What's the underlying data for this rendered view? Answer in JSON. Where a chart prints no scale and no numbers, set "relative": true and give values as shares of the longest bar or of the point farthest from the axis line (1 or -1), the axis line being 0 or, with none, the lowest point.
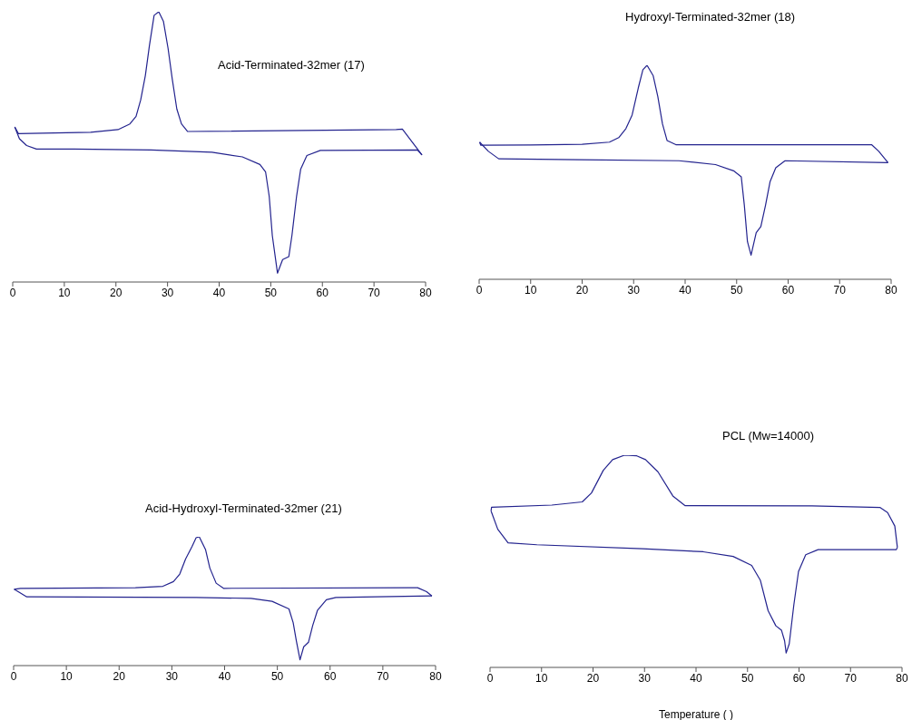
{
  "chart_data": [
    {
      "type": "line",
      "title": "Acid-Terminated-32mer (17)",
      "relative": true,
      "xlim": [
        0,
        80
      ],
      "xticks": [
        0,
        10,
        20,
        30,
        40,
        50,
        60,
        70,
        80
      ],
      "marker": "none",
      "series": [
        {
          "color": "#23238e",
          "x": [
            79.3,
            75.5,
            74.3,
            33.9,
            32.7,
            31.8,
            30.9,
            30.1,
            29.2,
            28.3,
            27.4,
            26.5,
            25.7,
            24.8,
            23.9,
            22.7,
            20.4,
            15.1,
            1.1,
            0.4
          ],
          "values": [
            0.47,
            0.566,
            0.564,
            0.557,
            0.585,
            0.64,
            0.753,
            0.865,
            0.965,
            1.0,
            0.987,
            0.876,
            0.764,
            0.674,
            0.613,
            0.585,
            0.564,
            0.554,
            0.549,
            0.574
          ]
        },
        {
          "color": "#23238e",
          "x": [
            0.4,
            1.3,
            2.7,
            4.6,
            11.9,
            26.8,
            38.6,
            44.5,
            47.9,
            49,
            49.7,
            50.3,
            51.3,
            52.3,
            53.5,
            54.1,
            55,
            55.8,
            57,
            59.6,
            78.4,
            79.3
          ],
          "values": [
            0.574,
            0.53,
            0.505,
            0.492,
            0.492,
            0.489,
            0.48,
            0.463,
            0.435,
            0.407,
            0.317,
            0.172,
            0.033,
            0.083,
            0.094,
            0.172,
            0.317,
            0.418,
            0.468,
            0.487,
            0.489,
            0.47
          ]
        }
      ]
    },
    {
      "type": "line",
      "title": "Hydroxyl-Terminated-32mer (18)",
      "relative": true,
      "xlim": [
        0,
        80
      ],
      "xticks": [
        0,
        10,
        20,
        30,
        40,
        50,
        60,
        70,
        80
      ],
      "marker": "none",
      "series": [
        {
          "color": "#23238e",
          "x": [
            79.4,
            77.6,
            76.2,
            38.2,
            36.5,
            35.6,
            34.7,
            33.8,
            32.6,
            31.8,
            30.9,
            29.7,
            28.5,
            27.1,
            25.3,
            20,
            10,
            0.3,
            0.1
          ],
          "values": [
            0.545,
            0.598,
            0.629,
            0.629,
            0.648,
            0.726,
            0.853,
            0.951,
            1.0,
            0.979,
            0.894,
            0.767,
            0.704,
            0.662,
            0.641,
            0.631,
            0.628,
            0.627,
            0.641
          ]
        },
        {
          "color": "#23238e",
          "x": [
            0.1,
            1.8,
            3.8,
            19.4,
            38.8,
            45.9,
            49.4,
            50.9,
            51.5,
            52.1,
            52.8,
            53.8,
            54.7,
            55.6,
            56.5,
            57.6,
            59.4,
            79.4
          ],
          "values": [
            0.641,
            0.598,
            0.563,
            0.559,
            0.554,
            0.536,
            0.507,
            0.479,
            0.345,
            0.176,
            0.113,
            0.218,
            0.246,
            0.345,
            0.457,
            0.521,
            0.554,
            0.545
          ]
        }
      ]
    },
    {
      "type": "line",
      "title": "Acid-Hydroxyl-Terminated-32mer (21)",
      "relative": true,
      "xlim": [
        0,
        80
      ],
      "xticks": [
        0,
        10,
        20,
        30,
        40,
        50,
        60,
        70,
        80
      ],
      "marker": "none",
      "series": [
        {
          "color": "#23238e",
          "x": [
            79.3,
            78.3,
            76.6,
            74.8,
            39.8,
            38.4,
            37.2,
            36.4,
            35.2,
            34.6,
            33.8,
            32.6,
            31.5,
            30.3,
            28.3,
            23.1,
            1.3,
            0.1
          ],
          "values": [
            0.541,
            0.574,
            0.605,
            0.605,
            0.6,
            0.64,
            0.758,
            0.899,
            1.0,
            0.993,
            0.922,
            0.828,
            0.711,
            0.652,
            0.616,
            0.605,
            0.6,
            0.593
          ]
        },
        {
          "color": "#23238e",
          "x": [
            0.1,
            2.5,
            34.6,
            45,
            49,
            52.2,
            53,
            53.6,
            54.3,
            55,
            55.9,
            56.7,
            57.6,
            59.3,
            61.1,
            79.3
          ],
          "values": [
            0.593,
            0.534,
            0.529,
            0.522,
            0.499,
            0.44,
            0.334,
            0.193,
            0.045,
            0.146,
            0.181,
            0.311,
            0.428,
            0.511,
            0.529,
            0.541
          ]
        }
      ]
    },
    {
      "type": "line",
      "title": "PCL (Mw=14000)",
      "xlabel": "Temperature (   )",
      "relative": true,
      "xlim": [
        0,
        80
      ],
      "xticks": [
        0,
        10,
        20,
        30,
        40,
        50,
        60,
        70,
        80
      ],
      "marker": "none",
      "series": [
        {
          "color": "#23238e",
          "x": [
            79.1,
            78.6,
            77.2,
            75.7,
            62.5,
            37.9,
            35.5,
            32.6,
            30.2,
            28.5,
            26.1,
            23.8,
            22,
            19.7,
            17.9,
            12,
            0.3,
            0.2
          ],
          "values": [
            0.566,
            0.666,
            0.73,
            0.754,
            0.761,
            0.762,
            0.808,
            0.922,
            0.979,
            0.997,
            1.0,
            0.979,
            0.929,
            0.822,
            0.78,
            0.765,
            0.755,
            0.737
          ]
        },
        {
          "color": "#23238e",
          "x": [
            0.2,
            1.5,
            3.5,
            9.1,
            29.6,
            41.4,
            47.2,
            50.8,
            52.5,
            54,
            55.5,
            56.6,
            57.2,
            57.5,
            58.1,
            59,
            59.9,
            61.3,
            63.7,
            78.9,
            79.1
          ],
          "values": [
            0.737,
            0.651,
            0.587,
            0.578,
            0.559,
            0.545,
            0.523,
            0.481,
            0.41,
            0.267,
            0.196,
            0.175,
            0.125,
            0.068,
            0.111,
            0.296,
            0.452,
            0.531,
            0.555,
            0.555,
            0.566
          ]
        }
      ]
    }
  ]
}
